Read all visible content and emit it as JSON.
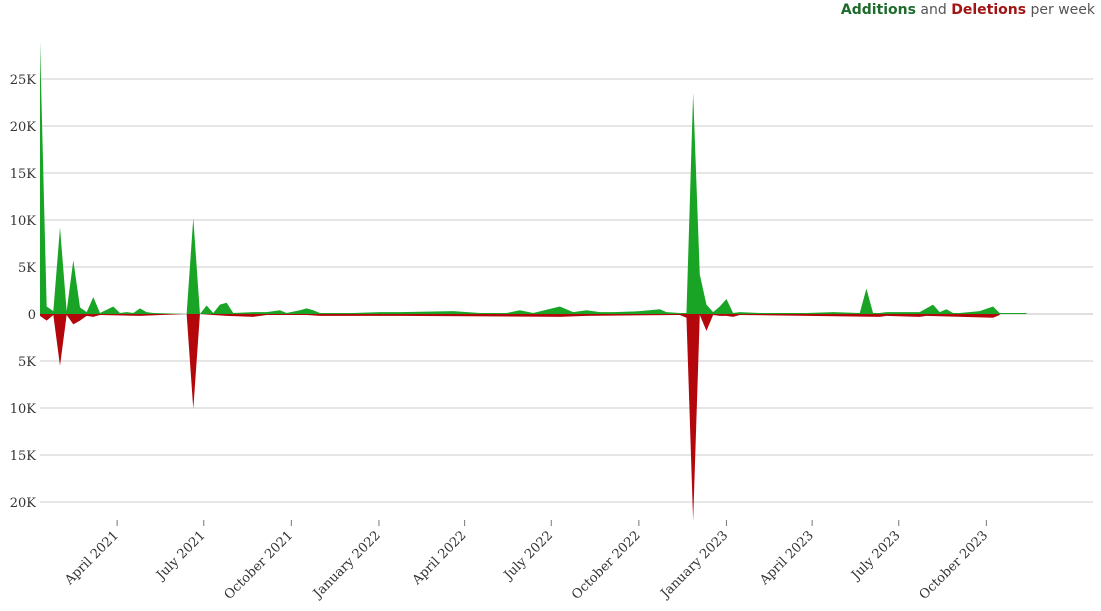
{
  "legend": {
    "additions_label": "Additions",
    "and_word": "and",
    "deletions_label": "Deletions",
    "per_week": "per week"
  },
  "colors": {
    "additions": "#19a426",
    "deletions": "#b3070b",
    "grid": "#cccccc",
    "axis_text": "#333333"
  },
  "chart_data": {
    "type": "area",
    "title": "",
    "xlabel": "",
    "ylabel": "",
    "x_range": [
      "2021-01-10",
      "2024-01-21"
    ],
    "ylim": [
      -22000,
      30000
    ],
    "grid": true,
    "legend_position": "top-right",
    "y_ticks": [
      {
        "value": 25000,
        "label": "25K"
      },
      {
        "value": 20000,
        "label": "20K"
      },
      {
        "value": 15000,
        "label": "15K"
      },
      {
        "value": 10000,
        "label": "10K"
      },
      {
        "value": 5000,
        "label": "5K"
      },
      {
        "value": 0,
        "label": "0"
      },
      {
        "value": -5000,
        "label": "5K"
      },
      {
        "value": -10000,
        "label": "10K"
      },
      {
        "value": -15000,
        "label": "15K"
      },
      {
        "value": -20000,
        "label": "20K"
      }
    ],
    "x_ticks": [
      {
        "date": "2021-04-01",
        "label": "April 2021"
      },
      {
        "date": "2021-07-01",
        "label": "July 2021"
      },
      {
        "date": "2021-10-01",
        "label": "October 2021"
      },
      {
        "date": "2022-01-01",
        "label": "January 2022"
      },
      {
        "date": "2022-04-01",
        "label": "April 2022"
      },
      {
        "date": "2022-07-01",
        "label": "July 2022"
      },
      {
        "date": "2022-10-01",
        "label": "October 2022"
      },
      {
        "date": "2023-01-01",
        "label": "January 2023"
      },
      {
        "date": "2023-04-01",
        "label": "April 2023"
      },
      {
        "date": "2023-07-01",
        "label": "July 2023"
      },
      {
        "date": "2023-10-01",
        "label": "October 2023"
      }
    ],
    "series": [
      {
        "name": "Additions",
        "points": [
          [
            "2021-01-10",
            29000
          ],
          [
            "2021-01-17",
            800
          ],
          [
            "2021-01-24",
            300
          ],
          [
            "2021-01-31",
            9200
          ],
          [
            "2021-02-07",
            300
          ],
          [
            "2021-02-14",
            5700
          ],
          [
            "2021-02-21",
            700
          ],
          [
            "2021-02-28",
            200
          ],
          [
            "2021-03-07",
            1800
          ],
          [
            "2021-03-14",
            100
          ],
          [
            "2021-03-28",
            800
          ],
          [
            "2021-04-04",
            100
          ],
          [
            "2021-04-11",
            200
          ],
          [
            "2021-04-18",
            100
          ],
          [
            "2021-04-25",
            600
          ],
          [
            "2021-05-02",
            200
          ],
          [
            "2021-05-09",
            100
          ],
          [
            "2021-06-13",
            0
          ],
          [
            "2021-06-20",
            10200
          ],
          [
            "2021-06-27",
            0
          ],
          [
            "2021-07-04",
            900
          ],
          [
            "2021-07-11",
            100
          ],
          [
            "2021-07-18",
            1000
          ],
          [
            "2021-07-25",
            1200
          ],
          [
            "2021-08-01",
            100
          ],
          [
            "2021-08-22",
            200
          ],
          [
            "2021-09-05",
            200
          ],
          [
            "2021-09-19",
            400
          ],
          [
            "2021-09-26",
            100
          ],
          [
            "2021-10-10",
            400
          ],
          [
            "2021-10-17",
            600
          ],
          [
            "2021-10-24",
            400
          ],
          [
            "2021-10-31",
            100
          ],
          [
            "2021-12-05",
            100
          ],
          [
            "2022-01-02",
            200
          ],
          [
            "2022-01-23",
            200
          ],
          [
            "2022-03-20",
            300
          ],
          [
            "2022-04-17",
            100
          ],
          [
            "2022-05-15",
            100
          ],
          [
            "2022-05-29",
            400
          ],
          [
            "2022-06-12",
            100
          ],
          [
            "2022-07-10",
            800
          ],
          [
            "2022-07-24",
            200
          ],
          [
            "2022-08-07",
            400
          ],
          [
            "2022-08-21",
            200
          ],
          [
            "2022-09-04",
            200
          ],
          [
            "2022-10-02",
            300
          ],
          [
            "2022-10-23",
            500
          ],
          [
            "2022-10-30",
            200
          ],
          [
            "2022-11-13",
            100
          ],
          [
            "2022-11-20",
            100
          ],
          [
            "2022-11-27",
            23500
          ],
          [
            "2022-12-04",
            4200
          ],
          [
            "2022-12-11",
            1000
          ],
          [
            "2022-12-18",
            200
          ],
          [
            "2022-12-25",
            800
          ],
          [
            "2023-01-01",
            1600
          ],
          [
            "2023-01-08",
            100
          ],
          [
            "2023-01-15",
            200
          ],
          [
            "2023-02-05",
            100
          ],
          [
            "2023-02-19",
            100
          ],
          [
            "2023-03-26",
            100
          ],
          [
            "2023-04-23",
            200
          ],
          [
            "2023-05-21",
            100
          ],
          [
            "2023-05-28",
            2700
          ],
          [
            "2023-06-04",
            100
          ],
          [
            "2023-06-11",
            100
          ],
          [
            "2023-06-18",
            200
          ],
          [
            "2023-07-23",
            200
          ],
          [
            "2023-08-06",
            1000
          ],
          [
            "2023-08-13",
            200
          ],
          [
            "2023-08-20",
            500
          ],
          [
            "2023-08-27",
            100
          ],
          [
            "2023-09-03",
            100
          ],
          [
            "2023-09-24",
            300
          ],
          [
            "2023-10-08",
            800
          ],
          [
            "2023-10-15",
            100
          ],
          [
            "2023-11-12",
            100
          ]
        ]
      },
      {
        "name": "Deletions",
        "points": [
          [
            "2021-01-10",
            -200
          ],
          [
            "2021-01-17",
            -700
          ],
          [
            "2021-01-24",
            -100
          ],
          [
            "2021-01-31",
            -5500
          ],
          [
            "2021-02-07",
            -100
          ],
          [
            "2021-02-14",
            -1100
          ],
          [
            "2021-02-21",
            -700
          ],
          [
            "2021-02-28",
            -200
          ],
          [
            "2021-03-07",
            -300
          ],
          [
            "2021-03-14",
            -100
          ],
          [
            "2021-04-25",
            -200
          ],
          [
            "2021-06-13",
            0
          ],
          [
            "2021-06-20",
            -10100
          ],
          [
            "2021-06-27",
            0
          ],
          [
            "2021-07-11",
            -100
          ],
          [
            "2021-07-25",
            -200
          ],
          [
            "2021-08-22",
            -300
          ],
          [
            "2021-09-05",
            -100
          ],
          [
            "2021-10-17",
            -100
          ],
          [
            "2021-10-31",
            -200
          ],
          [
            "2022-01-23",
            -200
          ],
          [
            "2022-07-10",
            -300
          ],
          [
            "2022-08-07",
            -200
          ],
          [
            "2022-11-13",
            -100
          ],
          [
            "2022-11-20",
            -400
          ],
          [
            "2022-11-27",
            -22000
          ],
          [
            "2022-12-04",
            -100
          ],
          [
            "2022-12-11",
            -1800
          ],
          [
            "2022-12-18",
            -100
          ],
          [
            "2022-12-25",
            -200
          ],
          [
            "2023-01-01",
            -200
          ],
          [
            "2023-01-08",
            -300
          ],
          [
            "2023-01-15",
            -100
          ],
          [
            "2023-06-11",
            -300
          ],
          [
            "2023-06-18",
            -200
          ],
          [
            "2023-07-23",
            -300
          ],
          [
            "2023-07-30",
            -200
          ],
          [
            "2023-10-08",
            -400
          ],
          [
            "2023-10-15",
            -100
          ]
        ]
      }
    ]
  }
}
